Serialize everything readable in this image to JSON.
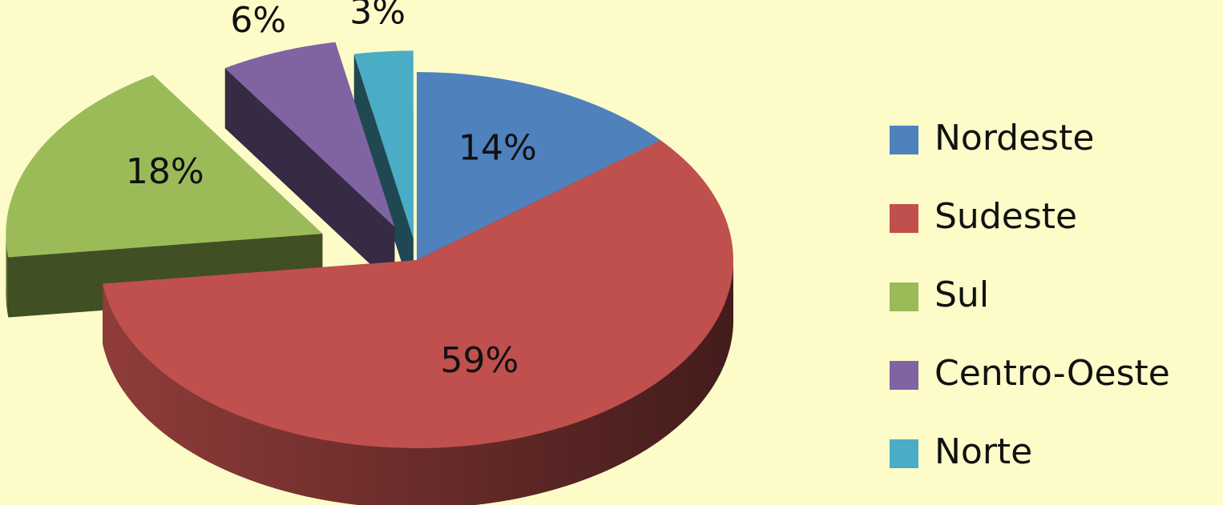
{
  "chart_data": {
    "type": "pie",
    "style": "3d-exploded",
    "series": [
      {
        "label": "Nordeste",
        "value": 14,
        "display": "14%",
        "color": "#4f81bd"
      },
      {
        "label": "Sudeste",
        "value": 59,
        "display": "59%",
        "color": "#c0504d"
      },
      {
        "label": "Sul",
        "value": 18,
        "display": "18%",
        "color": "#9bbb59"
      },
      {
        "label": "Centro-Oeste",
        "value": 6,
        "display": "6%",
        "color": "#8064a2"
      },
      {
        "label": "Norte",
        "value": 3,
        "display": "3%",
        "color": "#4bacc6"
      }
    ],
    "legend_position": "right",
    "background_color": "#fdfbc8"
  }
}
